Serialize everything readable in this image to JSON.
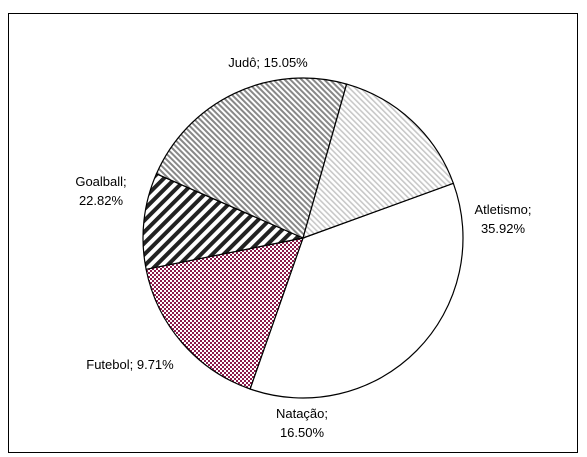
{
  "chart_data": {
    "type": "pie",
    "title": "",
    "slices": [
      {
        "label": "Atletismo",
        "value": 35.92,
        "display_label": [
          "Atletismo;",
          "35.92%"
        ],
        "pattern": "none",
        "fill": "#ffffff"
      },
      {
        "label": "Natação",
        "value": 16.5,
        "display_label": [
          "Natação;",
          "16.50%"
        ],
        "pattern": "checker",
        "fill": "#8b1a4a"
      },
      {
        "label": "Futebol",
        "value": 9.71,
        "display_label": [
          "Futebol; 9.71%"
        ],
        "pattern": "diagonal-bold",
        "fill": "#000000"
      },
      {
        "label": "Goalball",
        "value": 22.82,
        "display_label": [
          "Goalball;",
          "22.82%"
        ],
        "pattern": "diagonal-dense",
        "fill": "#888888"
      },
      {
        "label": "Judô",
        "value": 15.05,
        "display_label": [
          "Judô; 15.05%"
        ],
        "pattern": "diagonal-light",
        "fill": "#bbbbbb"
      }
    ],
    "legend": "none",
    "start_angle_deg": 70,
    "direction": "clockwise"
  }
}
